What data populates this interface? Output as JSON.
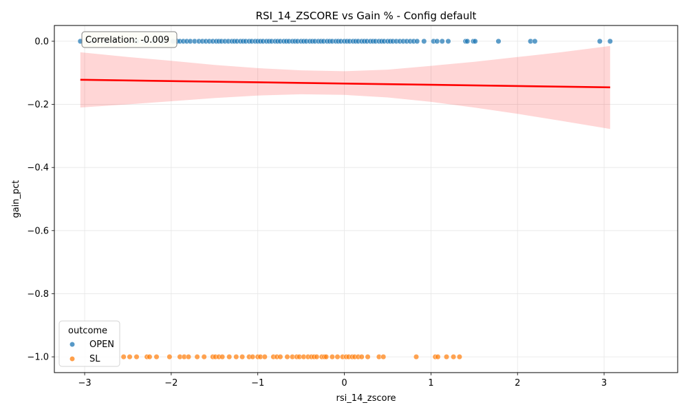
{
  "chart_data": {
    "type": "scatter",
    "title": "RSI_14_ZSCORE vs Gain % - Config default",
    "xlabel": "rsi_14_zscore",
    "ylabel": "gain_pct",
    "xlim": [
      -3.35,
      3.85
    ],
    "ylim": [
      -1.05,
      0.05
    ],
    "xticks": [
      -3,
      -2,
      -1,
      0,
      1,
      2,
      3
    ],
    "xtick_labels": [
      "−3",
      "−2",
      "−1",
      "0",
      "1",
      "2",
      "3"
    ],
    "yticks": [
      0.0,
      -0.2,
      -0.4,
      -0.6,
      -0.8,
      -1.0
    ],
    "ytick_labels": [
      "0.0",
      "−0.2",
      "−0.4",
      "−0.6",
      "−0.8",
      "−1.0"
    ],
    "grid": true,
    "legend": {
      "title": "outcome",
      "position": "lower-left",
      "entries": [
        {
          "label": "OPEN",
          "color": "#1f77b4"
        },
        {
          "label": "SL",
          "color": "#ff7f0e"
        }
      ]
    },
    "annotation": "Correlation: -0.009",
    "series": [
      {
        "name": "OPEN",
        "color": "#1f77b4",
        "y": 0.0,
        "x": [
          -3.05,
          -2.9,
          -2.75,
          -2.65,
          -2.5,
          -2.4,
          -2.3,
          -2.2,
          -2.1,
          -1.98,
          -1.93,
          -1.9,
          -1.86,
          -1.82,
          -1.78,
          -1.73,
          -1.68,
          -1.64,
          -1.6,
          -1.56,
          -1.52,
          -1.48,
          -1.45,
          -1.42,
          -1.38,
          -1.34,
          -1.3,
          -1.27,
          -1.24,
          -1.2,
          -1.17,
          -1.14,
          -1.1,
          -1.07,
          -1.03,
          -1.0,
          -0.97,
          -0.94,
          -0.9,
          -0.87,
          -0.84,
          -0.8,
          -0.77,
          -0.74,
          -0.7,
          -0.67,
          -0.64,
          -0.6,
          -0.57,
          -0.54,
          -0.5,
          -0.47,
          -0.44,
          -0.4,
          -0.37,
          -0.34,
          -0.3,
          -0.27,
          -0.24,
          -0.2,
          -0.17,
          -0.14,
          -0.1,
          -0.07,
          -0.04,
          0.0,
          0.03,
          0.06,
          0.1,
          0.13,
          0.16,
          0.2,
          0.23,
          0.26,
          0.3,
          0.33,
          0.36,
          0.4,
          0.43,
          0.46,
          0.5,
          0.53,
          0.56,
          0.6,
          0.64,
          0.68,
          0.72,
          0.76,
          0.8,
          0.84,
          0.92,
          1.03,
          1.07,
          1.13,
          1.2,
          1.4,
          1.42,
          1.49,
          1.51,
          1.78,
          2.15,
          2.2,
          2.95,
          3.07
        ]
      },
      {
        "name": "SL",
        "color": "#ff7f0e",
        "y": -1.0,
        "x": [
          -2.55,
          -2.48,
          -2.4,
          -2.28,
          -2.25,
          -2.17,
          -2.02,
          -1.9,
          -1.85,
          -1.8,
          -1.7,
          -1.62,
          -1.52,
          -1.49,
          -1.45,
          -1.41,
          -1.33,
          -1.25,
          -1.18,
          -1.1,
          -1.06,
          -1.0,
          -0.97,
          -0.92,
          -0.82,
          -0.78,
          -0.74,
          -0.66,
          -0.6,
          -0.55,
          -0.52,
          -0.47,
          -0.42,
          -0.38,
          -0.35,
          -0.32,
          -0.26,
          -0.23,
          -0.21,
          -0.14,
          -0.08,
          -0.02,
          0.02,
          0.05,
          0.09,
          0.12,
          0.16,
          0.2,
          0.27,
          0.4,
          0.45,
          0.83,
          1.05,
          1.08,
          1.18,
          1.26,
          1.33
        ]
      }
    ],
    "regression": {
      "color": "#ff0000",
      "line": {
        "x": [
          -3.05,
          3.07
        ],
        "y": [
          -0.122,
          -0.146
        ]
      },
      "band_x": [
        -3.05,
        -2.5,
        -2.0,
        -1.5,
        -1.0,
        -0.5,
        0.0,
        0.5,
        1.0,
        1.5,
        2.0,
        2.5,
        3.07
      ],
      "band_upper": [
        -0.035,
        -0.05,
        -0.062,
        -0.075,
        -0.085,
        -0.092,
        -0.095,
        -0.09,
        -0.078,
        -0.065,
        -0.05,
        -0.035,
        -0.015
      ],
      "band_lower": [
        -0.21,
        -0.2,
        -0.19,
        -0.18,
        -0.172,
        -0.168,
        -0.17,
        -0.178,
        -0.192,
        -0.21,
        -0.23,
        -0.252,
        -0.278
      ]
    }
  }
}
